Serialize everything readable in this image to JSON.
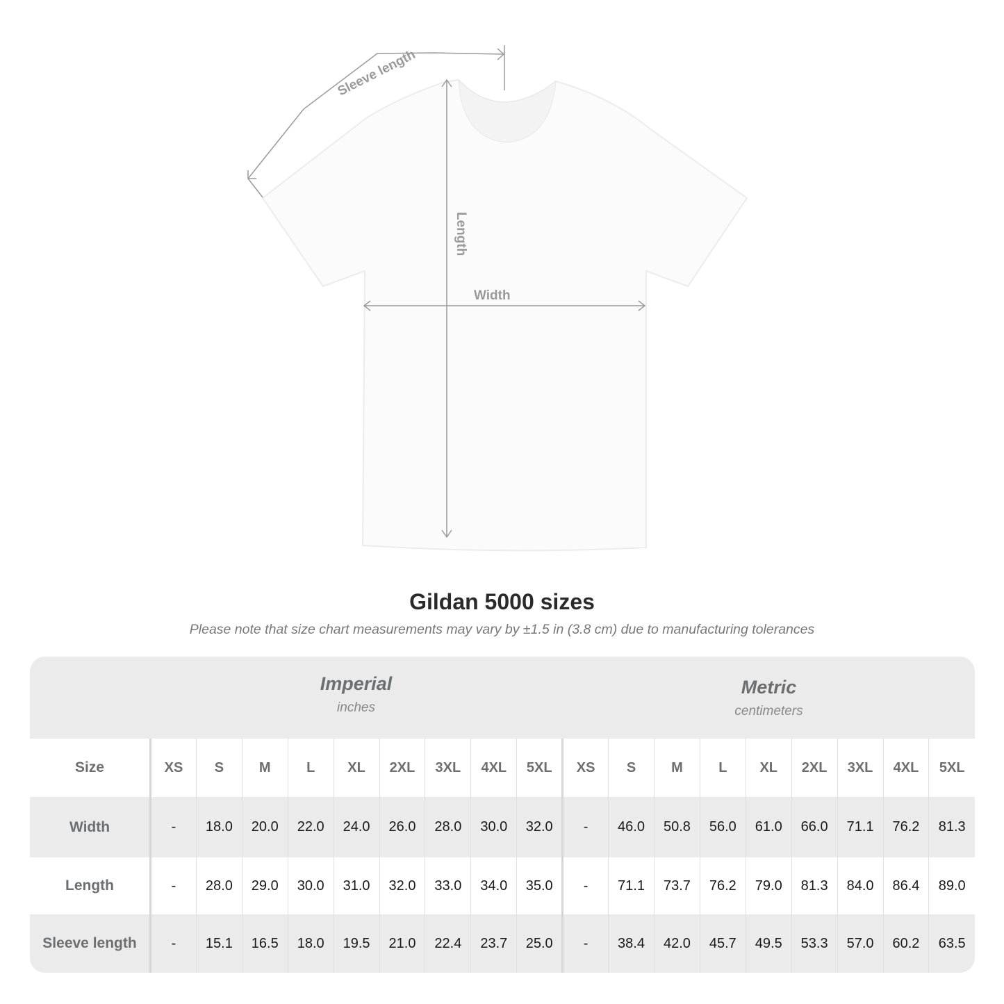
{
  "diagram": {
    "labels": {
      "sleeve": "Sleeve length",
      "length": "Length",
      "width": "Width"
    },
    "line_color": "#9a9a9a"
  },
  "title": "Gildan 5000 sizes",
  "subtitle": "Please note that size chart measurements may vary by ±1.5 in (3.8 cm) due to manufacturing tolerances",
  "table": {
    "imperial": {
      "name": "Imperial",
      "unit": "inches"
    },
    "metric": {
      "name": "Metric",
      "unit": "centimeters"
    },
    "size_label": "Size",
    "sizes": [
      "XS",
      "S",
      "M",
      "L",
      "XL",
      "2XL",
      "3XL",
      "4XL",
      "5XL"
    ],
    "rows": [
      {
        "label": "Width",
        "imperial": [
          "-",
          "18.0",
          "20.0",
          "22.0",
          "24.0",
          "26.0",
          "28.0",
          "30.0",
          "32.0"
        ],
        "metric": [
          "-",
          "46.0",
          "50.8",
          "56.0",
          "61.0",
          "66.0",
          "71.1",
          "76.2",
          "81.3"
        ]
      },
      {
        "label": "Length",
        "imperial": [
          "-",
          "28.0",
          "29.0",
          "30.0",
          "31.0",
          "32.0",
          "33.0",
          "34.0",
          "35.0"
        ],
        "metric": [
          "-",
          "71.1",
          "73.7",
          "76.2",
          "79.0",
          "81.3",
          "84.0",
          "86.4",
          "89.0"
        ]
      },
      {
        "label": "Sleeve length",
        "imperial": [
          "-",
          "15.1",
          "16.5",
          "18.0",
          "19.5",
          "21.0",
          "22.4",
          "23.7",
          "25.0"
        ],
        "metric": [
          "-",
          "38.4",
          "42.0",
          "45.7",
          "49.5",
          "53.3",
          "57.0",
          "60.2",
          "63.5"
        ]
      }
    ]
  }
}
